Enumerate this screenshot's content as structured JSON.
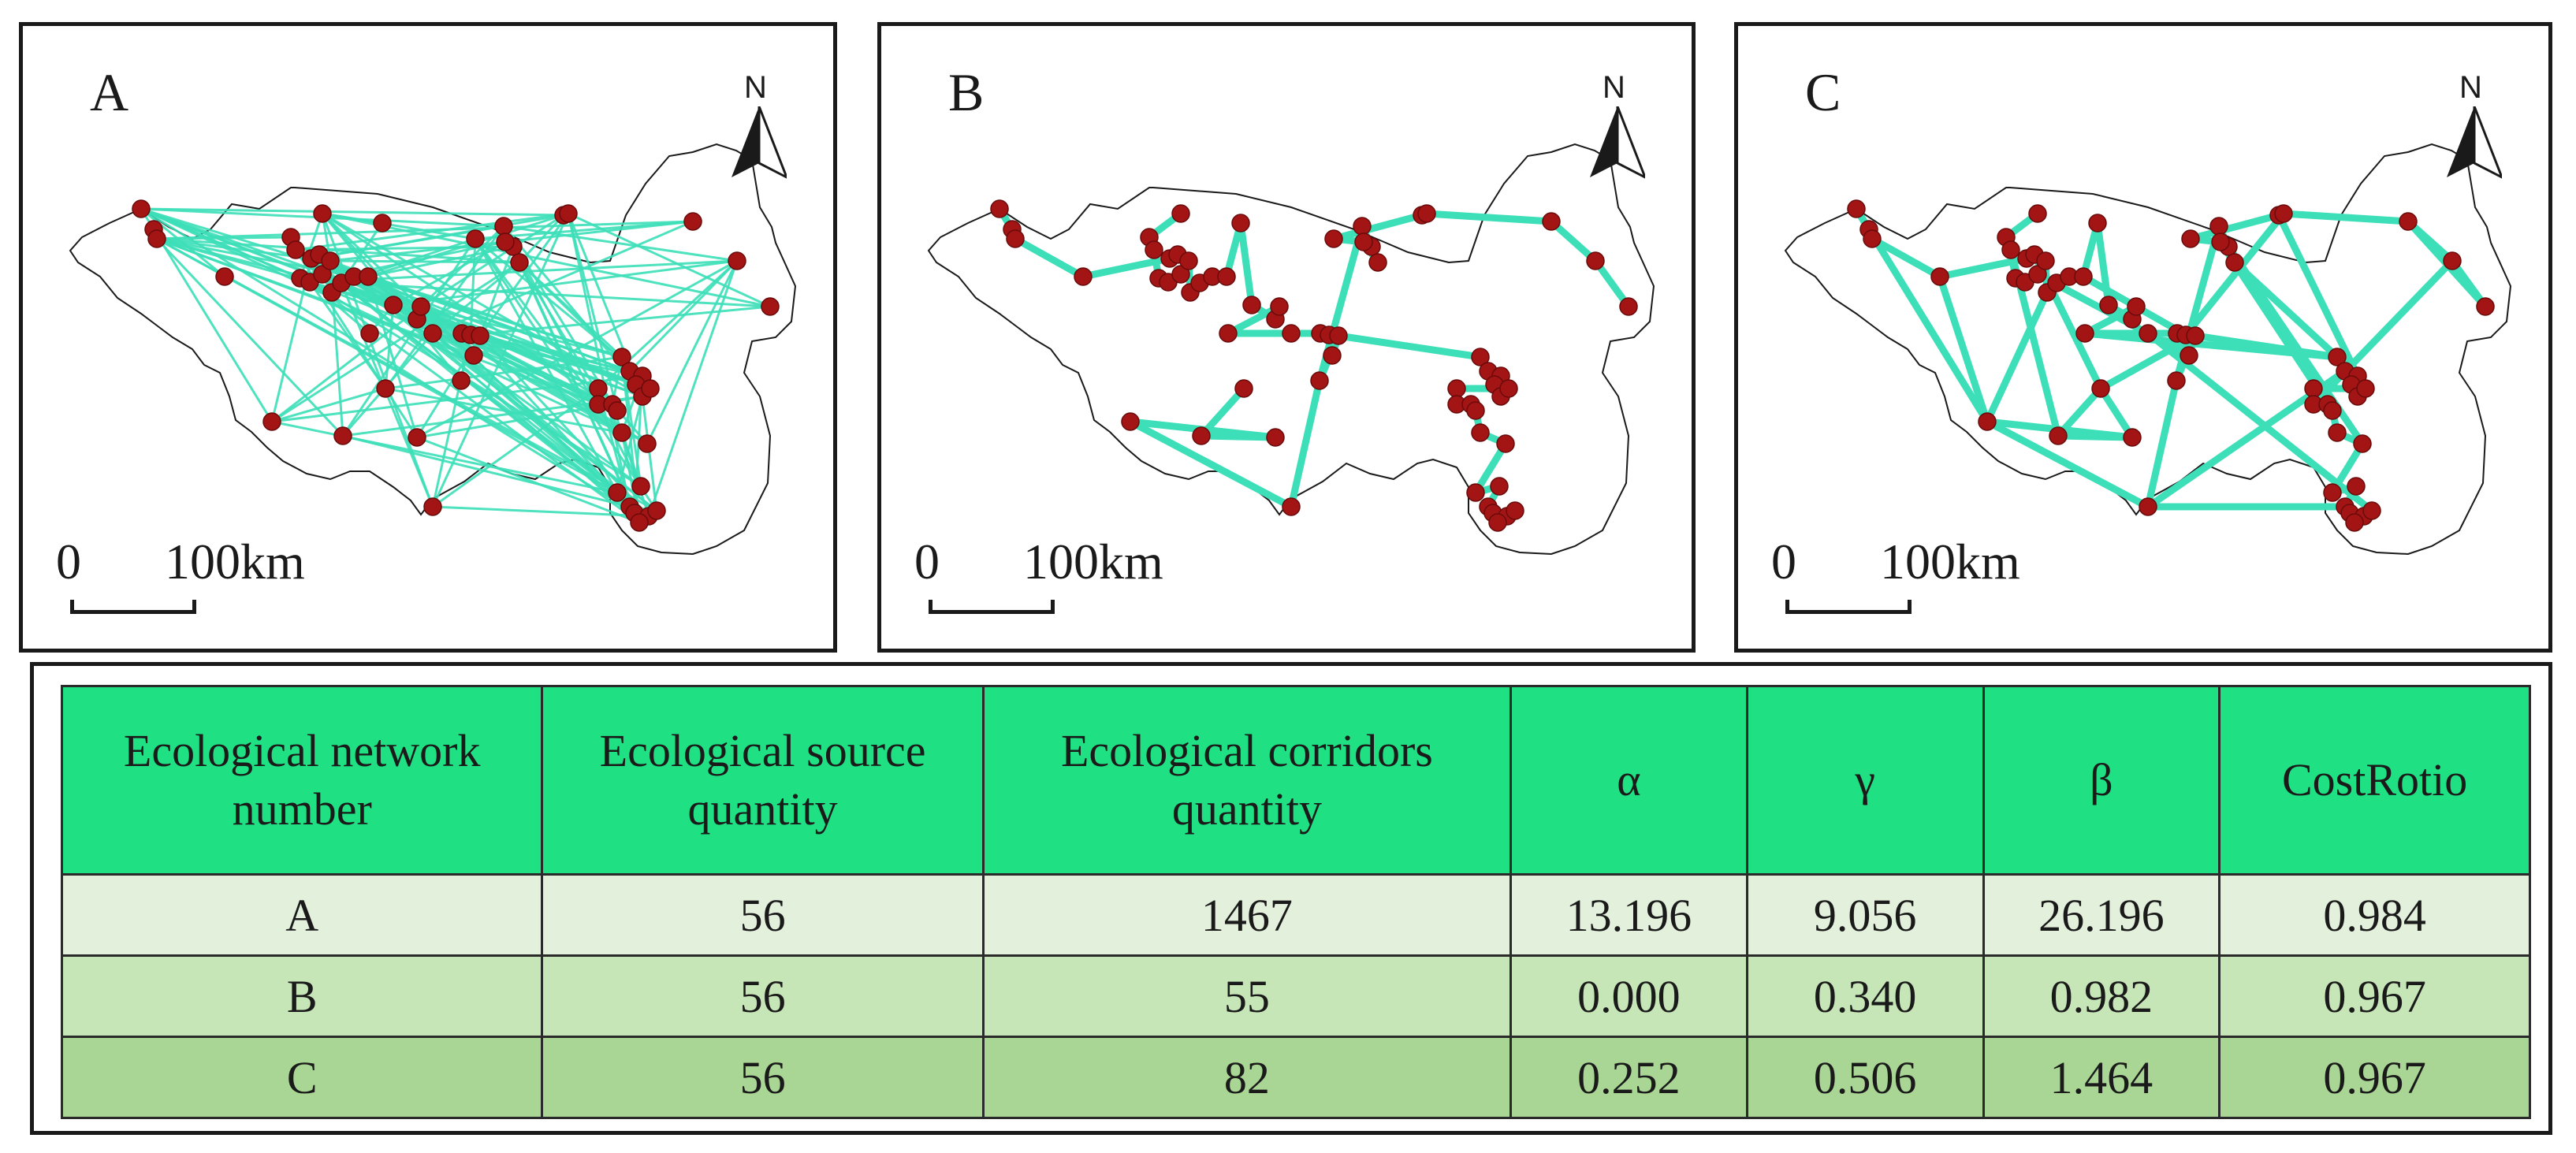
{
  "maps": [
    {
      "letter": "A",
      "north": "N",
      "scale_zero": "0",
      "scale_length": "100km"
    },
    {
      "letter": "B",
      "north": "N",
      "scale_zero": "0",
      "scale_length": "100km"
    },
    {
      "letter": "C",
      "north": "N",
      "scale_zero": "0",
      "scale_length": "100km"
    }
  ],
  "colors": {
    "corridor": "#3ddfb9",
    "source_node": "#a31515",
    "header_bg": "#1fe083"
  },
  "table": {
    "headers": [
      "Ecological network number",
      "Ecological source quantity",
      "Ecological corridors quantity",
      "α",
      "γ",
      "β",
      "CostRotio"
    ],
    "rows": [
      [
        "A",
        "56",
        "1467",
        "13.196",
        "9.056",
        "26.196",
        "0.984"
      ],
      [
        "B",
        "56",
        "55",
        "0.000",
        "0.340",
        "0.982",
        "0.967"
      ],
      [
        "C",
        "56",
        "82",
        "0.252",
        "0.506",
        "1.464",
        "0.967"
      ]
    ]
  }
}
